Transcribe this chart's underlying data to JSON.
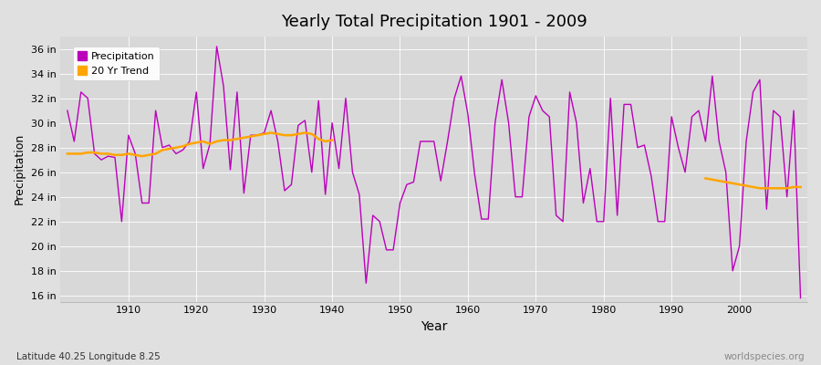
{
  "title": "Yearly Total Precipitation 1901 - 2009",
  "xlabel": "Year",
  "ylabel": "Precipitation",
  "lat_lon_label": "Latitude 40.25 Longitude 8.25",
  "watermark": "worldspecies.org",
  "bg_color": "#e0e0e0",
  "plot_bg_color": "#d8d8d8",
  "precip_color": "#bb00bb",
  "trend_color": "#ffa500",
  "ylim": [
    15.5,
    37.0
  ],
  "yticks": [
    16,
    18,
    20,
    22,
    24,
    26,
    28,
    30,
    32,
    34,
    36
  ],
  "xticks": [
    1910,
    1920,
    1930,
    1940,
    1950,
    1960,
    1970,
    1980,
    1990,
    2000
  ],
  "xlim": [
    1900,
    2010
  ],
  "years": [
    1901,
    1902,
    1903,
    1904,
    1905,
    1906,
    1907,
    1908,
    1909,
    1910,
    1911,
    1912,
    1913,
    1914,
    1915,
    1916,
    1917,
    1918,
    1919,
    1920,
    1921,
    1922,
    1923,
    1924,
    1925,
    1926,
    1927,
    1928,
    1929,
    1930,
    1931,
    1932,
    1933,
    1934,
    1935,
    1936,
    1937,
    1938,
    1939,
    1940,
    1941,
    1942,
    1943,
    1944,
    1945,
    1946,
    1947,
    1948,
    1949,
    1950,
    1951,
    1952,
    1953,
    1954,
    1955,
    1956,
    1957,
    1958,
    1959,
    1960,
    1961,
    1962,
    1963,
    1964,
    1965,
    1966,
    1967,
    1968,
    1969,
    1970,
    1971,
    1972,
    1973,
    1974,
    1975,
    1976,
    1977,
    1978,
    1979,
    1980,
    1981,
    1982,
    1983,
    1984,
    1985,
    1986,
    1987,
    1988,
    1989,
    1990,
    1991,
    1992,
    1993,
    1994,
    1995,
    1996,
    1997,
    1998,
    1999,
    2000,
    2001,
    2002,
    2003,
    2004,
    2005,
    2006,
    2007,
    2008,
    2009
  ],
  "precip": [
    31.0,
    28.5,
    32.5,
    32.0,
    27.5,
    27.0,
    27.3,
    27.2,
    22.0,
    29.0,
    27.5,
    23.5,
    23.5,
    31.0,
    28.0,
    28.2,
    27.5,
    27.8,
    28.5,
    32.5,
    26.3,
    28.3,
    36.2,
    33.0,
    26.2,
    32.5,
    24.3,
    29.0,
    29.0,
    29.2,
    31.0,
    28.5,
    24.5,
    25.0,
    29.8,
    30.2,
    26.0,
    31.8,
    24.2,
    30.0,
    26.3,
    32.0,
    26.0,
    24.2,
    17.0,
    22.5,
    22.0,
    19.7,
    19.7,
    23.5,
    25.0,
    25.2,
    28.5,
    28.5,
    28.5,
    25.3,
    28.5,
    32.0,
    33.8,
    30.7,
    25.8,
    22.2,
    22.2,
    30.0,
    33.5,
    30.0,
    24.0,
    24.0,
    30.5,
    32.2,
    31.0,
    30.5,
    22.5,
    22.0,
    32.5,
    30.0,
    23.5,
    26.3,
    22.0,
    22.0,
    32.0,
    22.5,
    31.5,
    31.5,
    28.0,
    28.2,
    25.7,
    22.0,
    22.0,
    30.5,
    28.0,
    26.0,
    30.5,
    31.0,
    28.5,
    33.8,
    28.5,
    26.0,
    18.0,
    20.0,
    28.5,
    32.5,
    33.5,
    23.0,
    31.0,
    30.5,
    24.0,
    31.0,
    15.8
  ],
  "trend_segment1_years": [
    1901,
    1902,
    1903,
    1904,
    1905,
    1906,
    1907,
    1908,
    1909,
    1910,
    1911,
    1912,
    1913,
    1914,
    1915,
    1916,
    1917,
    1918,
    1919,
    1920,
    1921,
    1922,
    1923,
    1924,
    1925,
    1926,
    1927,
    1928,
    1929,
    1930,
    1931,
    1932,
    1933,
    1934,
    1935,
    1936,
    1937,
    1938,
    1939,
    1940
  ],
  "trend_segment1_vals": [
    27.5,
    27.5,
    27.5,
    27.6,
    27.6,
    27.5,
    27.5,
    27.4,
    27.4,
    27.5,
    27.4,
    27.3,
    27.4,
    27.5,
    27.8,
    27.9,
    28.0,
    28.1,
    28.3,
    28.4,
    28.5,
    28.3,
    28.5,
    28.6,
    28.6,
    28.7,
    28.8,
    28.9,
    29.0,
    29.1,
    29.2,
    29.1,
    29.0,
    29.0,
    29.1,
    29.2,
    29.1,
    28.7,
    28.5,
    28.6
  ],
  "trend_segment2_years": [
    1995,
    1996,
    1997,
    1998,
    1999,
    2000,
    2001,
    2002,
    2003,
    2004,
    2005,
    2006,
    2007,
    2008,
    2009
  ],
  "trend_segment2_vals": [
    25.5,
    25.4,
    25.3,
    25.2,
    25.1,
    25.0,
    24.9,
    24.8,
    24.7,
    24.7,
    24.7,
    24.7,
    24.7,
    24.8,
    24.8
  ]
}
